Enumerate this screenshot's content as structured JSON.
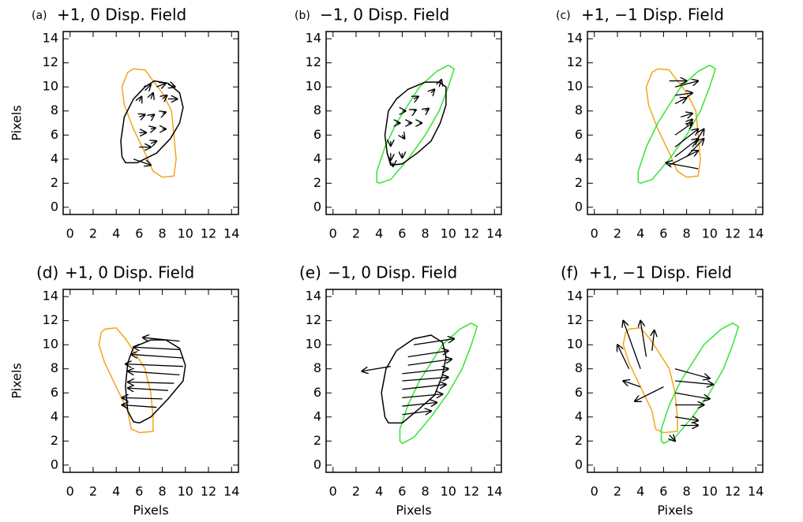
{
  "chart_data": [
    {
      "type": "quiver",
      "label": "(a)",
      "title": "+1, 0 Disp. Field",
      "ylabel": "Pixels",
      "xlim": [
        -0.6,
        14.6
      ],
      "ylim": [
        -0.6,
        14.6
      ],
      "xticks": [
        0,
        2,
        4,
        6,
        8,
        10,
        12,
        14
      ],
      "yticks": [
        0,
        2,
        4,
        6,
        8,
        10,
        12,
        14
      ],
      "contours": [
        {
          "color": "#f5a31a",
          "x": [
            5.5,
            6.5,
            7.2,
            8,
            8.8,
            9,
            9.2,
            9,
            8,
            7.2,
            6.5,
            5.5,
            4.7,
            4.5,
            5
          ],
          "y": [
            11.5,
            11.4,
            10.5,
            9.5,
            8,
            6,
            4,
            2.6,
            2.5,
            3,
            4.5,
            6.5,
            8.5,
            10,
            11.2
          ]
        },
        {
          "color": "#000000",
          "x": [
            4.8,
            5.8,
            7.5,
            8.7,
            9.5,
            9.8,
            9.5,
            8.5,
            7.3,
            6.5,
            5.5,
            4.7,
            4.4,
            4.5
          ],
          "y": [
            3.7,
            3.7,
            4.5,
            5.7,
            7,
            8.3,
            9.5,
            10.3,
            10.5,
            10,
            9,
            7.5,
            5.5,
            4.2
          ]
        }
      ],
      "vectors": {
        "x": [
          5.5,
          6,
          7,
          6,
          7,
          8,
          6,
          7,
          8,
          6,
          7,
          8,
          6.5,
          7.5,
          8.5,
          8.5
        ],
        "y": [
          4,
          5,
          5.3,
          6.2,
          6.5,
          6.5,
          7.5,
          7.5,
          7.8,
          8.8,
          9,
          9,
          9.7,
          10,
          10.2,
          9
        ],
        "u": [
          1.5,
          1,
          0.5,
          0.6,
          0.4,
          0.3,
          0.5,
          0.3,
          0.3,
          0.2,
          0.2,
          0.4,
          0.5,
          0.8,
          0.6,
          0.8
        ],
        "v": [
          -0.5,
          0,
          0.2,
          0,
          0.1,
          0,
          0.2,
          0.2,
          0.1,
          0.4,
          0.5,
          0.3,
          0.5,
          0.3,
          -0.2,
          0
        ]
      }
    },
    {
      "type": "quiver",
      "label": "(b)",
      "title": "−1, 0 Disp. Field",
      "xlim": [
        -0.6,
        14.6
      ],
      "ylim": [
        -0.6,
        14.6
      ],
      "xticks": [
        0,
        2,
        4,
        6,
        8,
        10,
        12,
        14
      ],
      "yticks": [
        0,
        2,
        4,
        6,
        8,
        10,
        12,
        14
      ],
      "contours": [
        {
          "color": "#33e633",
          "x": [
            4,
            5,
            6.5,
            8,
            9.2,
            10,
            10.5,
            10,
            9,
            7.5,
            6.5,
            5.5,
            4.5,
            3.8,
            3.8
          ],
          "y": [
            2,
            2.3,
            4,
            6,
            8,
            10,
            11.5,
            11.8,
            11.3,
            10,
            8.5,
            7,
            5,
            3,
            2.1
          ]
        },
        {
          "color": "#000000",
          "x": [
            5,
            6,
            7.3,
            8.5,
            9.3,
            9.8,
            9.8,
            9.2,
            8,
            6.5,
            5.5,
            4.8,
            4.5,
            4.7
          ],
          "y": [
            3.5,
            3.6,
            4.5,
            5.5,
            7,
            8.5,
            10,
            10.4,
            10.4,
            9.8,
            9,
            8,
            6,
            4.5
          ]
        }
      ],
      "vectors": {
        "x": [
          5,
          6,
          5,
          6,
          5.5,
          6.5,
          7.5,
          6,
          7,
          8,
          7,
          8.5,
          9.2,
          5.2
        ],
        "y": [
          4.5,
          4.5,
          5.5,
          6,
          7,
          7,
          7,
          8,
          8,
          8,
          9,
          9.5,
          10,
          3.7
        ],
        "u": [
          0,
          0,
          0,
          0.2,
          0.3,
          0.3,
          0.2,
          0.3,
          0.2,
          0.3,
          0.4,
          0.3,
          0.2,
          0
        ],
        "v": [
          -0.6,
          -0.4,
          -0.4,
          -0.3,
          0,
          0,
          0,
          0,
          0.1,
          0.2,
          0.2,
          0.3,
          0.6,
          -0.3
        ]
      }
    },
    {
      "type": "quiver",
      "label": "(c)",
      "title": "+1, −1 Disp. Field",
      "xlim": [
        -0.6,
        14.6
      ],
      "ylim": [
        -0.6,
        14.6
      ],
      "xticks": [
        0,
        2,
        4,
        6,
        8,
        10,
        12,
        14
      ],
      "yticks": [
        0,
        2,
        4,
        6,
        8,
        10,
        12,
        14
      ],
      "contours": [
        {
          "color": "#f5a31a",
          "x": [
            5.5,
            6.5,
            7.2,
            8,
            8.8,
            9,
            9.2,
            9,
            8,
            7.2,
            6.5,
            5.5,
            4.7,
            4.5,
            5
          ],
          "y": [
            11.5,
            11.4,
            10.5,
            9.5,
            8,
            6,
            4,
            2.6,
            2.5,
            3,
            4.5,
            6.5,
            8.5,
            10,
            11.2
          ]
        },
        {
          "color": "#33e633",
          "x": [
            4,
            5,
            6.5,
            8,
            9.2,
            10,
            10.5,
            10,
            9,
            7.5,
            6.5,
            5.5,
            4.5,
            3.8,
            3.8
          ],
          "y": [
            2,
            2.3,
            4,
            6,
            8,
            10,
            11.5,
            11.8,
            11.3,
            10,
            8.5,
            7,
            5,
            3,
            2.1
          ]
        }
      ],
      "vectors": {
        "x": [
          6.5,
          7,
          7,
          7,
          7.5,
          8,
          7,
          7,
          7,
          6.5,
          8,
          8.5,
          9
        ],
        "y": [
          10.5,
          10,
          9.3,
          8.6,
          7.5,
          6.8,
          6,
          5,
          4.2,
          3.5,
          4.2,
          5,
          3.2
        ],
        "u": [
          1.5,
          2,
          1.5,
          1,
          1,
          0.5,
          1.5,
          2,
          2,
          2.5,
          1.5,
          1,
          -2.8
        ],
        "v": [
          0,
          0.5,
          0.2,
          0.5,
          0.3,
          0.5,
          1,
          1.5,
          1.5,
          1.2,
          1.5,
          1.5,
          0.5
        ]
      }
    },
    {
      "type": "quiver",
      "label": "(d)",
      "title": "+1, 0 Disp. Field",
      "ylabel": "Pixels",
      "xlabel": "Pixels",
      "xlim": [
        -0.6,
        14.6
      ],
      "ylim": [
        -0.6,
        14.6
      ],
      "xticks": [
        0,
        2,
        4,
        6,
        8,
        10,
        12,
        14
      ],
      "yticks": [
        0,
        2,
        4,
        6,
        8,
        10,
        12,
        14
      ],
      "contours": [
        {
          "color": "#f5a31a",
          "x": [
            3,
            4,
            4.8,
            5.5,
            6.5,
            7,
            7.2,
            7.2,
            6,
            5.3,
            5,
            4,
            3,
            2.5,
            2.7
          ],
          "y": [
            11.3,
            11.4,
            10.5,
            9.5,
            8,
            6,
            4,
            2.8,
            2.7,
            3,
            4.5,
            6.5,
            8.5,
            10,
            11
          ]
        },
        {
          "color": "#000000",
          "x": [
            6,
            7,
            8.5,
            9.8,
            10,
            9.5,
            8.3,
            7,
            5.5,
            5,
            4.8,
            5,
            5.5
          ],
          "y": [
            3.5,
            4,
            5.5,
            7,
            8.3,
            9.7,
            10.4,
            10.4,
            9.8,
            8.5,
            6.5,
            4.5,
            3.6
          ]
        }
      ],
      "vectors": {
        "x": [
          9.5,
          9.5,
          9.8,
          9.8,
          9.5,
          9,
          8.5,
          8,
          7.5
        ],
        "y": [
          10.3,
          9.6,
          8.9,
          8.2,
          7.5,
          6.8,
          6.2,
          5.5,
          4.8
        ],
        "u": [
          -3.2,
          -4,
          -4.5,
          -5,
          -4.5,
          -4,
          -3.5,
          -3.5,
          -3
        ],
        "v": [
          0.3,
          0.2,
          0.3,
          0.2,
          0.3,
          0.1,
          0.2,
          0.1,
          0.2
        ]
      }
    },
    {
      "type": "quiver",
      "label": "(e)",
      "title": "−1, 0 Disp. Field",
      "xlabel": "Pixels",
      "xlim": [
        -0.6,
        14.6
      ],
      "ylim": [
        -0.6,
        14.6
      ],
      "xticks": [
        0,
        2,
        4,
        6,
        8,
        10,
        12,
        14
      ],
      "yticks": [
        0,
        2,
        4,
        6,
        8,
        10,
        12,
        14
      ],
      "contours": [
        {
          "color": "#33e633",
          "x": [
            6,
            7,
            8.5,
            10,
            11.2,
            12,
            12.5,
            12,
            11,
            9.5,
            8.5,
            7.5,
            6.5,
            5.8,
            5.8
          ],
          "y": [
            1.8,
            2.3,
            4,
            6,
            8,
            10,
            11.5,
            11.8,
            11.3,
            10,
            8.5,
            7,
            5,
            3,
            2
          ]
        },
        {
          "color": "#000000",
          "x": [
            4.8,
            6,
            7.5,
            8.8,
            9.5,
            9.8,
            9.5,
            8.5,
            7,
            5.5,
            4.6,
            4.2,
            4.5
          ],
          "y": [
            3.5,
            3.5,
            4.7,
            5.8,
            7.5,
            9,
            10.2,
            10.8,
            10.5,
            9.5,
            8,
            6,
            4
          ]
        }
      ],
      "vectors": {
        "x": [
          7,
          6.5,
          6.5,
          6,
          6,
          6,
          6,
          6,
          6,
          5
        ],
        "y": [
          10,
          9,
          8.3,
          7.6,
          7,
          6.3,
          5.6,
          4.9,
          4.2,
          8.2
        ],
        "u": [
          3.5,
          3.5,
          3.8,
          4,
          4,
          3.8,
          3.5,
          3,
          2.5,
          -2.5
        ],
        "v": [
          0.5,
          0.5,
          0.5,
          0.4,
          0.3,
          0.4,
          0.3,
          0.3,
          0.3,
          -0.4
        ]
      }
    },
    {
      "type": "quiver",
      "label": "(f)",
      "title": "+1, −1 Disp. Field",
      "xlabel": "Pixels",
      "xlim": [
        -0.6,
        14.6
      ],
      "ylim": [
        -0.6,
        14.6
      ],
      "xticks": [
        0,
        2,
        4,
        6,
        8,
        10,
        12,
        14
      ],
      "yticks": [
        0,
        2,
        4,
        6,
        8,
        10,
        12,
        14
      ],
      "contours": [
        {
          "color": "#f5a31a",
          "x": [
            3,
            4,
            4.8,
            5.5,
            6.5,
            7,
            7.2,
            7.2,
            6,
            5.3,
            5,
            4,
            3,
            2.5,
            2.7
          ],
          "y": [
            11.3,
            11.4,
            10.5,
            9.5,
            8,
            6,
            4,
            2.8,
            2.7,
            3,
            4.5,
            6.5,
            8.5,
            10,
            11
          ]
        },
        {
          "color": "#33e633",
          "x": [
            6,
            7,
            8.5,
            10,
            11.2,
            12,
            12.5,
            12,
            11,
            9.5,
            8.5,
            7.5,
            6.5,
            5.8,
            5.8
          ],
          "y": [
            1.8,
            2.3,
            4,
            6,
            8,
            10,
            11.5,
            11.8,
            11.3,
            10,
            8.5,
            7,
            5,
            3,
            2
          ]
        }
      ],
      "vectors": {
        "x": [
          4,
          4.5,
          3,
          5,
          4,
          6,
          7,
          7,
          7,
          7,
          7,
          7.5,
          6.5
        ],
        "y": [
          8,
          9,
          8,
          9.5,
          6.5,
          6.5,
          8,
          7,
          6,
          5,
          4,
          3.3,
          2.5
        ],
        "u": [
          -1.5,
          -0.5,
          -1,
          0.2,
          -1.5,
          -2.5,
          3,
          3.3,
          3,
          2.5,
          2,
          1.5,
          0.5
        ],
        "v": [
          4,
          3,
          2,
          1.7,
          0.5,
          -1.2,
          -0.8,
          -0.3,
          -0.5,
          0,
          -0.3,
          0,
          -0.5
        ]
      }
    }
  ]
}
